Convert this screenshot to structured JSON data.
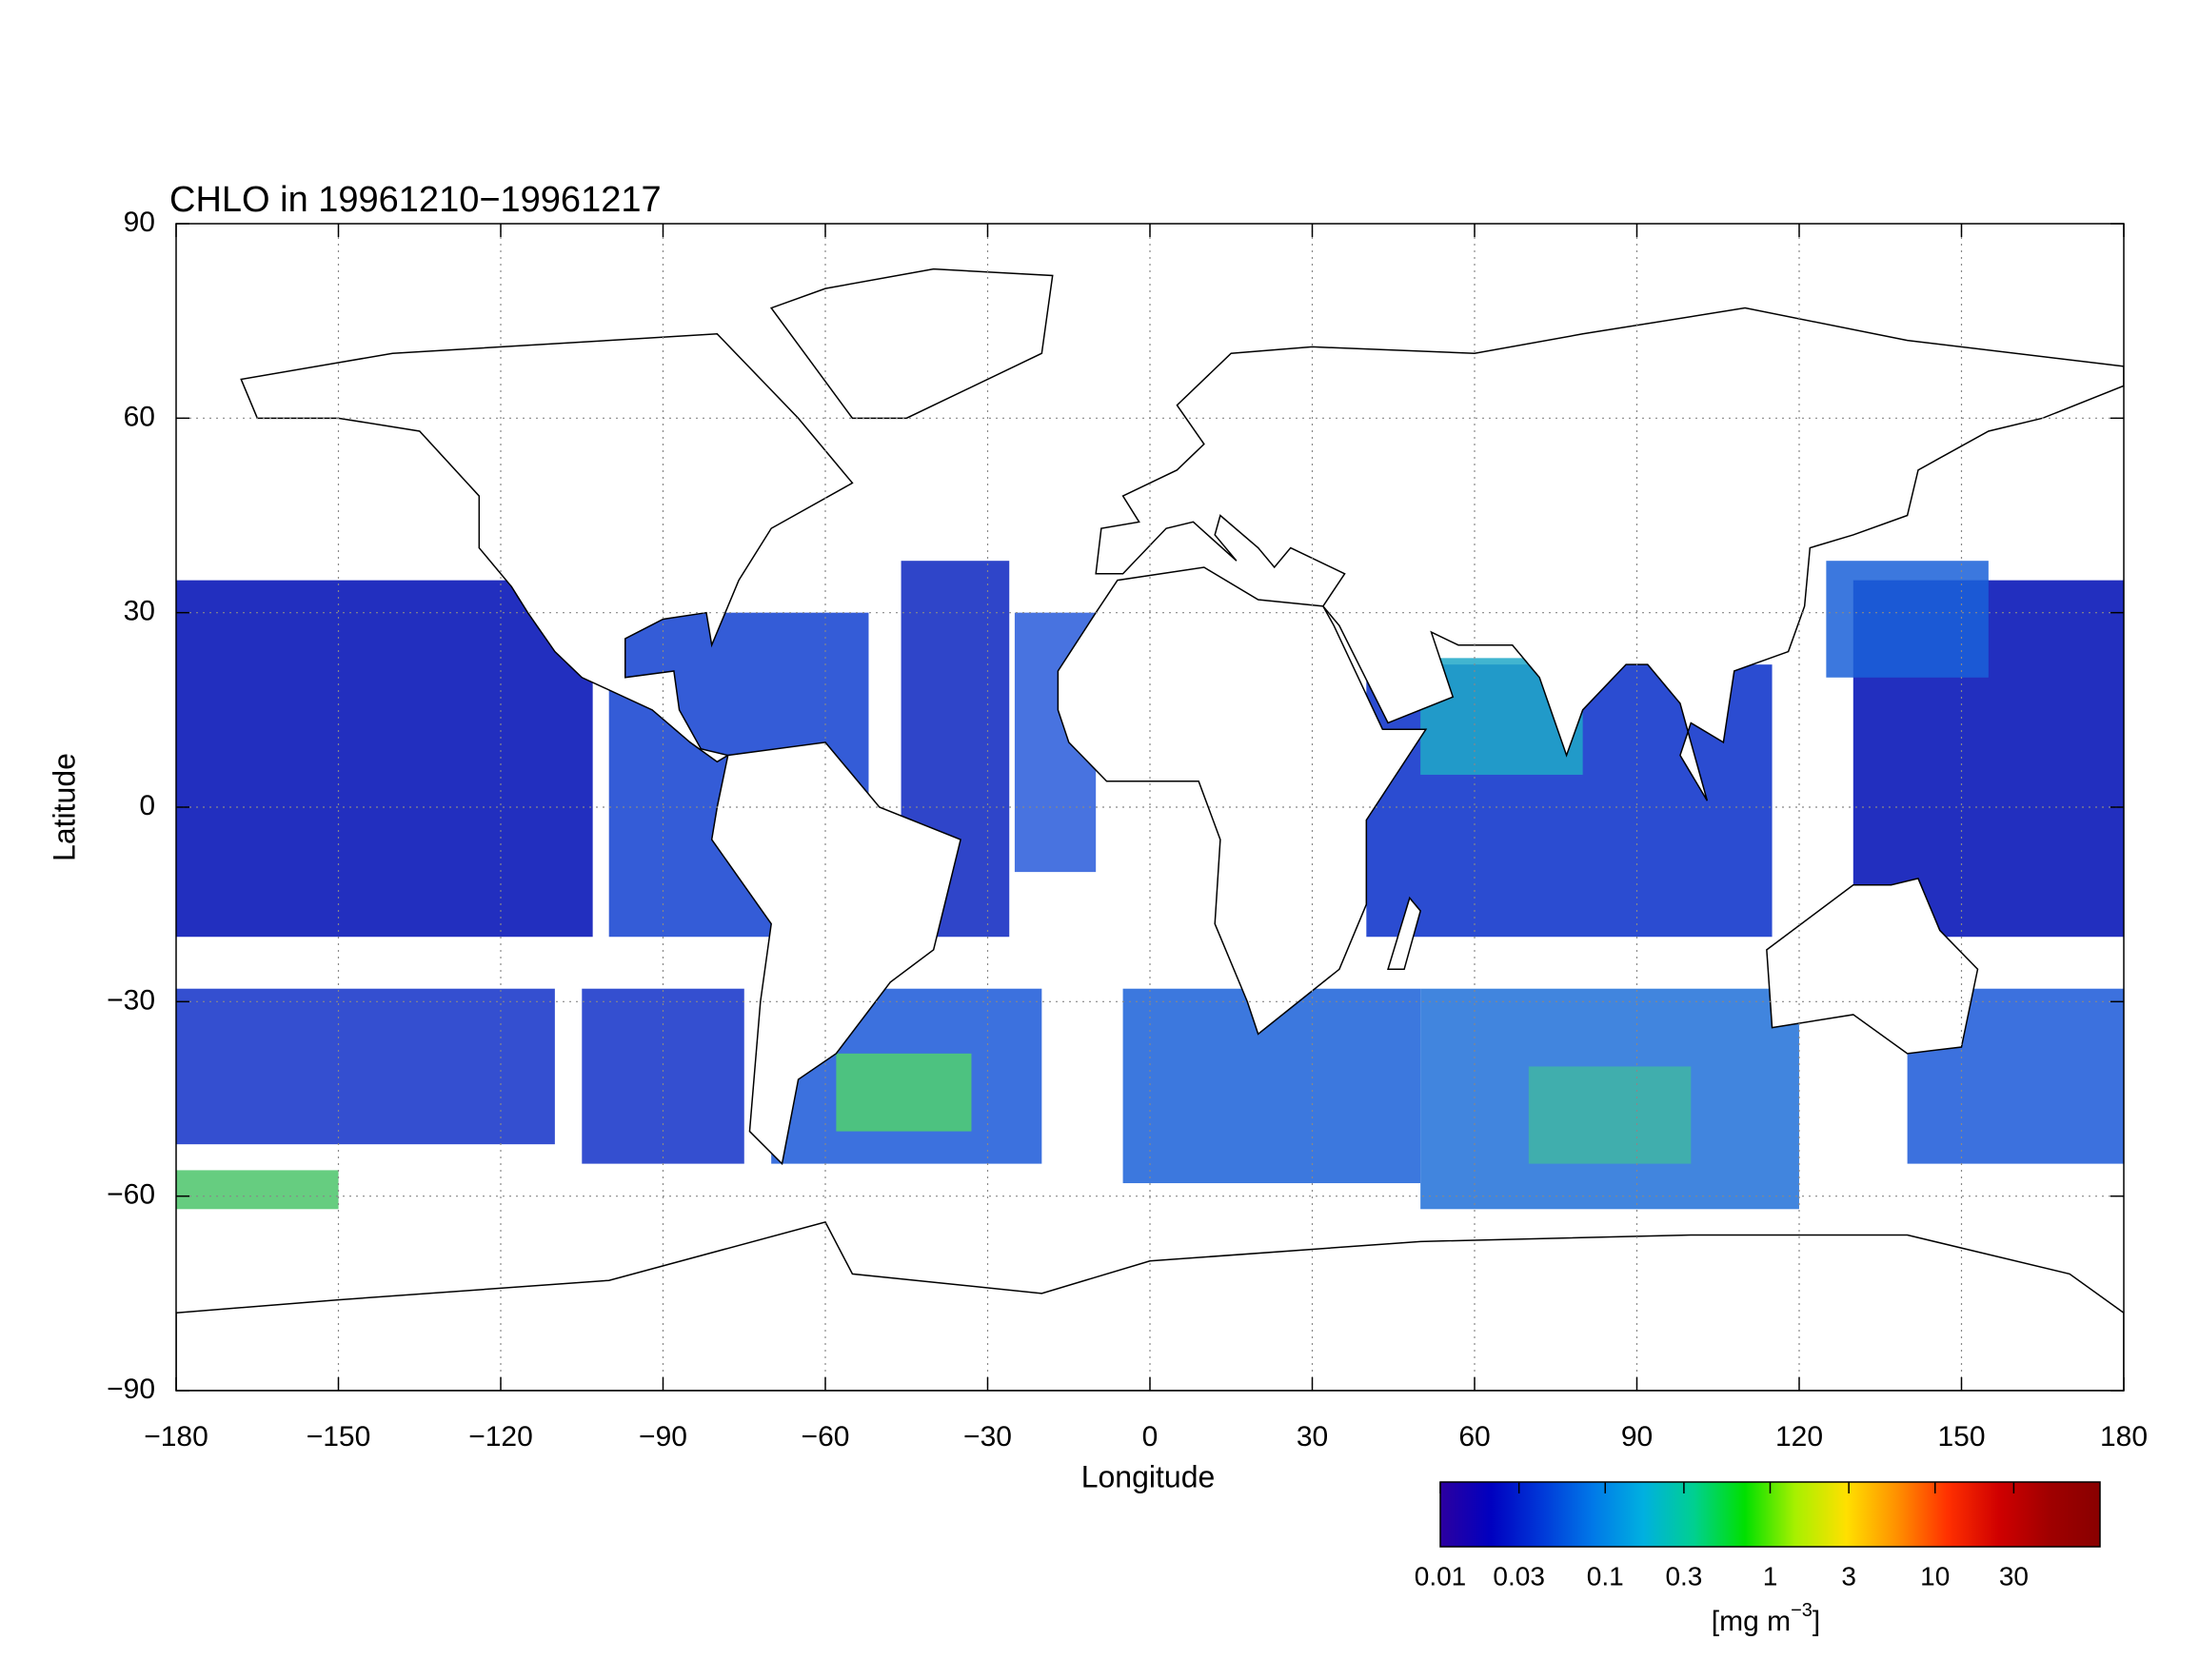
{
  "map": {
    "title": "CHLO in 19961210−19961217",
    "xlabel": "Longitude",
    "ylabel": "Latitude",
    "xlim": [
      -180,
      180
    ],
    "ylim": [
      -90,
      90
    ],
    "xticks": [
      {
        "value": -180,
        "label": "−180"
      },
      {
        "value": -150,
        "label": "−150"
      },
      {
        "value": -120,
        "label": "−120"
      },
      {
        "value": -90,
        "label": "−90"
      },
      {
        "value": -60,
        "label": "−60"
      },
      {
        "value": -30,
        "label": "−30"
      },
      0,
      30,
      60,
      90,
      120,
      150,
      180
    ],
    "yticks": [
      {
        "value": -90,
        "label": "−90"
      },
      {
        "value": -60,
        "label": "−60"
      },
      {
        "value": -30,
        "label": "−30"
      },
      0,
      30,
      60,
      90
    ],
    "grid": true,
    "colorbar": {
      "scale": "log",
      "lim": [
        0.01,
        100
      ],
      "ticks": [
        0.01,
        0.03,
        0.1,
        0.3,
        1,
        3,
        10,
        30
      ],
      "colormap": [
        "#2c00a0",
        "#0000c0",
        "#0038d8",
        "#0078e8",
        "#00b0e0",
        "#00d090",
        "#00e000",
        "#a8f000",
        "#ffe000",
        "#ff9000",
        "#ff3000",
        "#d00000",
        "#a00000",
        "#880000"
      ],
      "unit": {
        "text": "[mg m",
        "exponent": "−3",
        "close": "]"
      }
    }
  }
}
